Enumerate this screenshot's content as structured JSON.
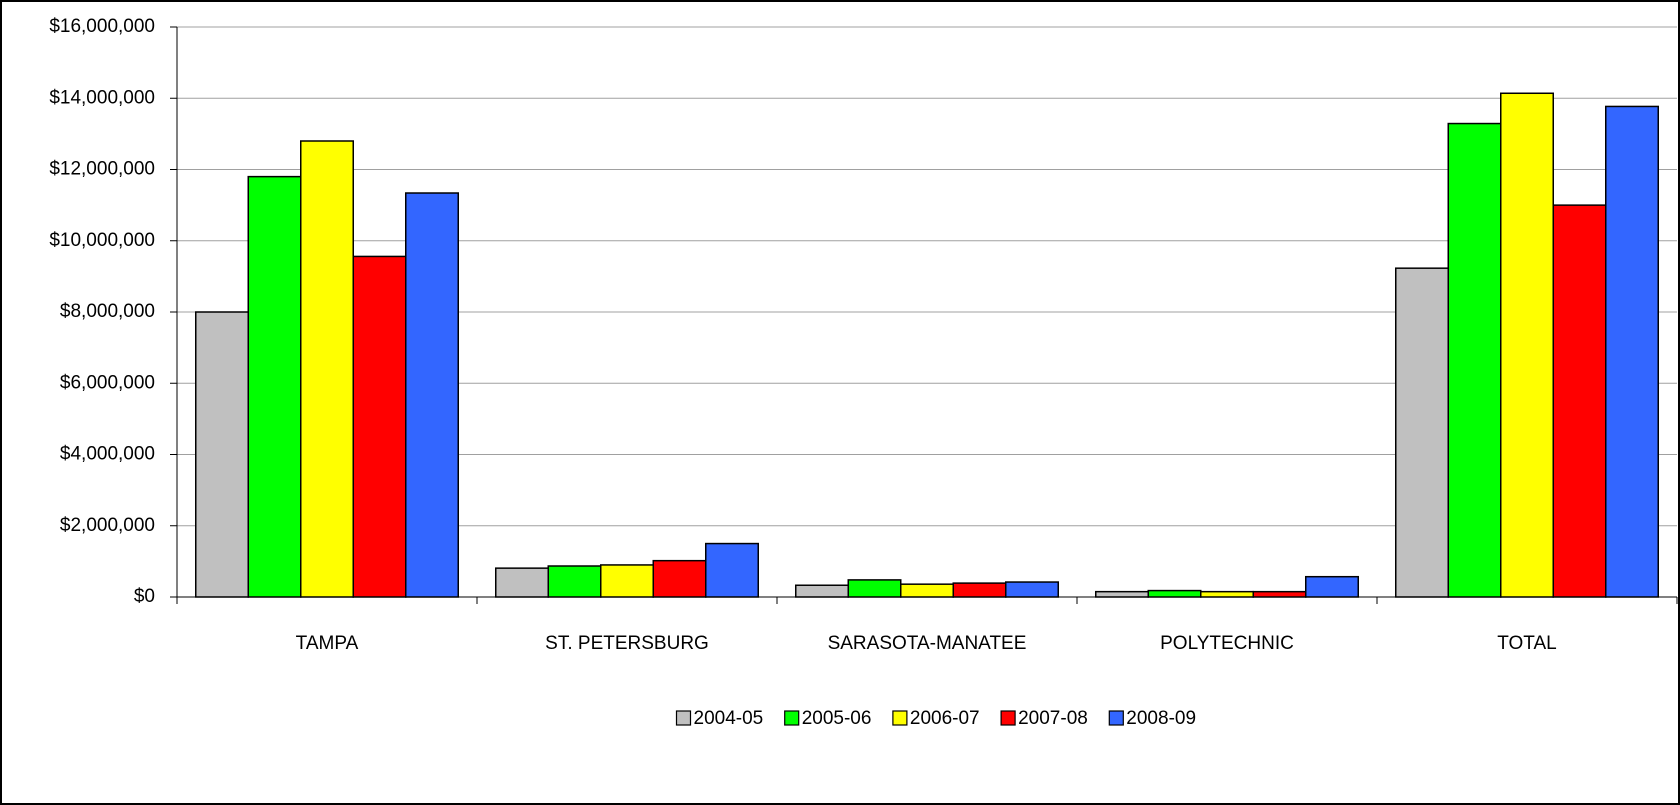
{
  "chart_data": {
    "type": "bar",
    "categories": [
      "TAMPA",
      "ST. PETERSBURG",
      "SARASOTA-MANATEE",
      "POLYTECHNIC",
      "TOTAL"
    ],
    "series": [
      {
        "name": "2004-05",
        "color": "#c0c0c0",
        "values": [
          8000000,
          810000,
          330000,
          150000,
          9230000
        ]
      },
      {
        "name": "2005-06",
        "color": "#00ff00",
        "values": [
          11800000,
          870000,
          480000,
          180000,
          13290000
        ]
      },
      {
        "name": "2006-07",
        "color": "#ffff00",
        "values": [
          12800000,
          900000,
          360000,
          150000,
          14140000
        ]
      },
      {
        "name": "2007-08",
        "color": "#ff0000",
        "values": [
          9560000,
          1020000,
          390000,
          150000,
          11000000
        ]
      },
      {
        "name": "2008-09",
        "color": "#3366ff",
        "values": [
          11340000,
          1500000,
          420000,
          570000,
          13770000
        ]
      }
    ],
    "ylim": [
      0,
      16000000
    ],
    "yticks": [
      {
        "value": 0,
        "label": "$0"
      },
      {
        "value": 2000000,
        "label": "$2,000,000"
      },
      {
        "value": 4000000,
        "label": "$4,000,000"
      },
      {
        "value": 6000000,
        "label": "$6,000,000"
      },
      {
        "value": 8000000,
        "label": "$8,000,000"
      },
      {
        "value": 10000000,
        "label": "$10,000,000"
      },
      {
        "value": 12000000,
        "label": "$12,000,000"
      },
      {
        "value": 14000000,
        "label": "$14,000,000"
      },
      {
        "value": 16000000,
        "label": "$16,000,000"
      }
    ],
    "grid": true,
    "legend": "bottom"
  }
}
